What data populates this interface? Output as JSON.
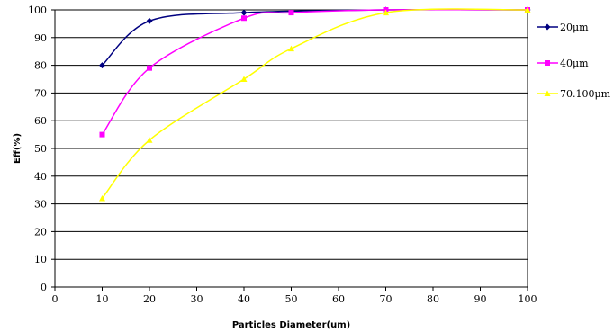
{
  "chart_data": {
    "type": "line",
    "title": "",
    "xlabel": "Particles Diameter(um)",
    "ylabel": "Eff(%)",
    "xlim": [
      0,
      100
    ],
    "ylim": [
      0,
      100
    ],
    "x_ticks": [
      "0",
      "10",
      "20",
      "30",
      "40",
      "50",
      "60",
      "70",
      "80",
      "90",
      "100"
    ],
    "y_ticks": [
      "0",
      "10",
      "20",
      "30",
      "40",
      "50",
      "60",
      "70",
      "80",
      "90",
      "100"
    ],
    "grid": "horizontal",
    "legend_position": "right",
    "series": [
      {
        "name": "20μm",
        "color": "#000080",
        "marker": "diamond",
        "x": [
          10,
          20,
          40,
          70,
          100
        ],
        "y": [
          80,
          96,
          99,
          100,
          100
        ]
      },
      {
        "name": "40μm",
        "color": "#FF00FF",
        "marker": "square",
        "x": [
          10,
          20,
          40,
          50,
          70,
          100
        ],
        "y": [
          55,
          79,
          97,
          99,
          100,
          100
        ]
      },
      {
        "name": "70.100μm",
        "color": "#FFFF00",
        "marker": "triangle",
        "x": [
          10,
          20,
          40,
          50,
          70,
          100
        ],
        "y": [
          32,
          53,
          75,
          86,
          99,
          100
        ]
      }
    ]
  }
}
